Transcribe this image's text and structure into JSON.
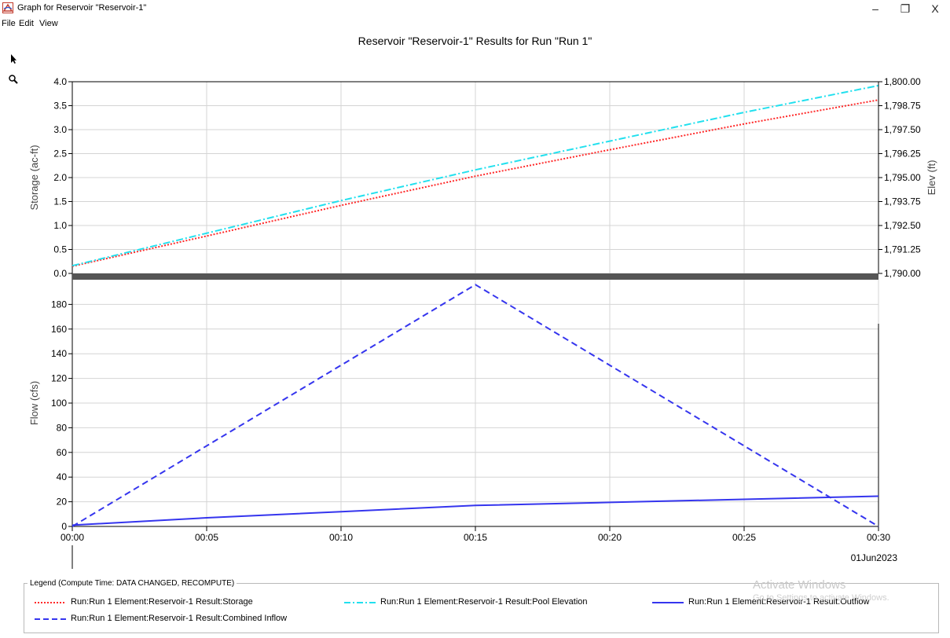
{
  "window": {
    "title": "Graph for Reservoir \"Reservoir-1\"",
    "minimize_glyph": "–",
    "maximize_glyph": "❐",
    "close_glyph": "X",
    "app_icon": "hec-hms-icon"
  },
  "menu": {
    "items": [
      "File",
      "Edit",
      "View"
    ]
  },
  "toolbar": {
    "tools": [
      "select-arrow-icon",
      "zoom-magnifier-icon"
    ]
  },
  "chart_data": {
    "title": "Reservoir \"Reservoir-1\" Results for Run \"Run 1\"",
    "x_ticks": [
      "00:00",
      "00:05",
      "00:10",
      "00:15",
      "00:20",
      "00:25",
      "00:30"
    ],
    "x_date": "01Jun2023",
    "x_minutes": [
      0,
      30
    ],
    "top_panel": {
      "type": "line",
      "ylabel_left": "Storage (ac-ft)",
      "ylabel_right": "Elev (ft)",
      "ylim_left": [
        0,
        4
      ],
      "ylim_right": [
        1790,
        1800
      ],
      "left_ticks": [
        "0.0",
        "0.5",
        "1.0",
        "1.5",
        "2.0",
        "2.5",
        "3.0",
        "3.5",
        "4.0"
      ],
      "right_ticks": [
        "1,790.00",
        "1,791.25",
        "1,792.50",
        "1,793.75",
        "1,795.00",
        "1,796.25",
        "1,797.50",
        "1,798.75",
        "1,800.00"
      ],
      "series": [
        {
          "name": "Run:Run 1 Element:Reservoir-1 Result:Storage",
          "axis": "left",
          "color": "#ff2a2a",
          "style": "dotted",
          "x": [
            0,
            5,
            10,
            15,
            20,
            25,
            30
          ],
          "y": [
            0.15,
            0.78,
            1.42,
            2.03,
            2.58,
            3.12,
            3.62
          ]
        },
        {
          "name": "Run:Run 1 Element:Reservoir-1 Result:Pool Elevation",
          "axis": "right",
          "color": "#22e0ee",
          "style": "dashdot",
          "x": [
            0,
            5,
            10,
            15,
            20,
            25,
            30
          ],
          "y": [
            1790.4,
            1792.1,
            1793.8,
            1795.4,
            1796.9,
            1798.4,
            1799.8
          ]
        }
      ]
    },
    "bottom_panel": {
      "type": "line",
      "ylabel": "Flow (cfs)",
      "ylim": [
        0,
        200
      ],
      "ticks": [
        "0",
        "20",
        "40",
        "60",
        "80",
        "100",
        "120",
        "140",
        "160",
        "180"
      ],
      "series": [
        {
          "name": "Run:Run 1 Element:Reservoir-1 Result:Outflow",
          "color": "#3535ee",
          "style": "solid",
          "x": [
            0,
            5,
            10,
            15,
            20,
            25,
            30
          ],
          "y": [
            1,
            7,
            12,
            17,
            19.5,
            22,
            24.5
          ]
        },
        {
          "name": "Run:Run 1 Element:Reservoir-1 Result:Combined Inflow",
          "color": "#3535ee",
          "style": "dashed",
          "x": [
            0,
            15,
            30
          ],
          "y": [
            0,
            196,
            0
          ]
        }
      ]
    },
    "grid": true,
    "legend": {
      "caption": "Legend (Compute Time: DATA CHANGED, RECOMPUTE)",
      "placement": "bottom"
    }
  },
  "watermark": {
    "line1": "Activate Windows",
    "line2": "Go to Settings to activate Windows."
  }
}
